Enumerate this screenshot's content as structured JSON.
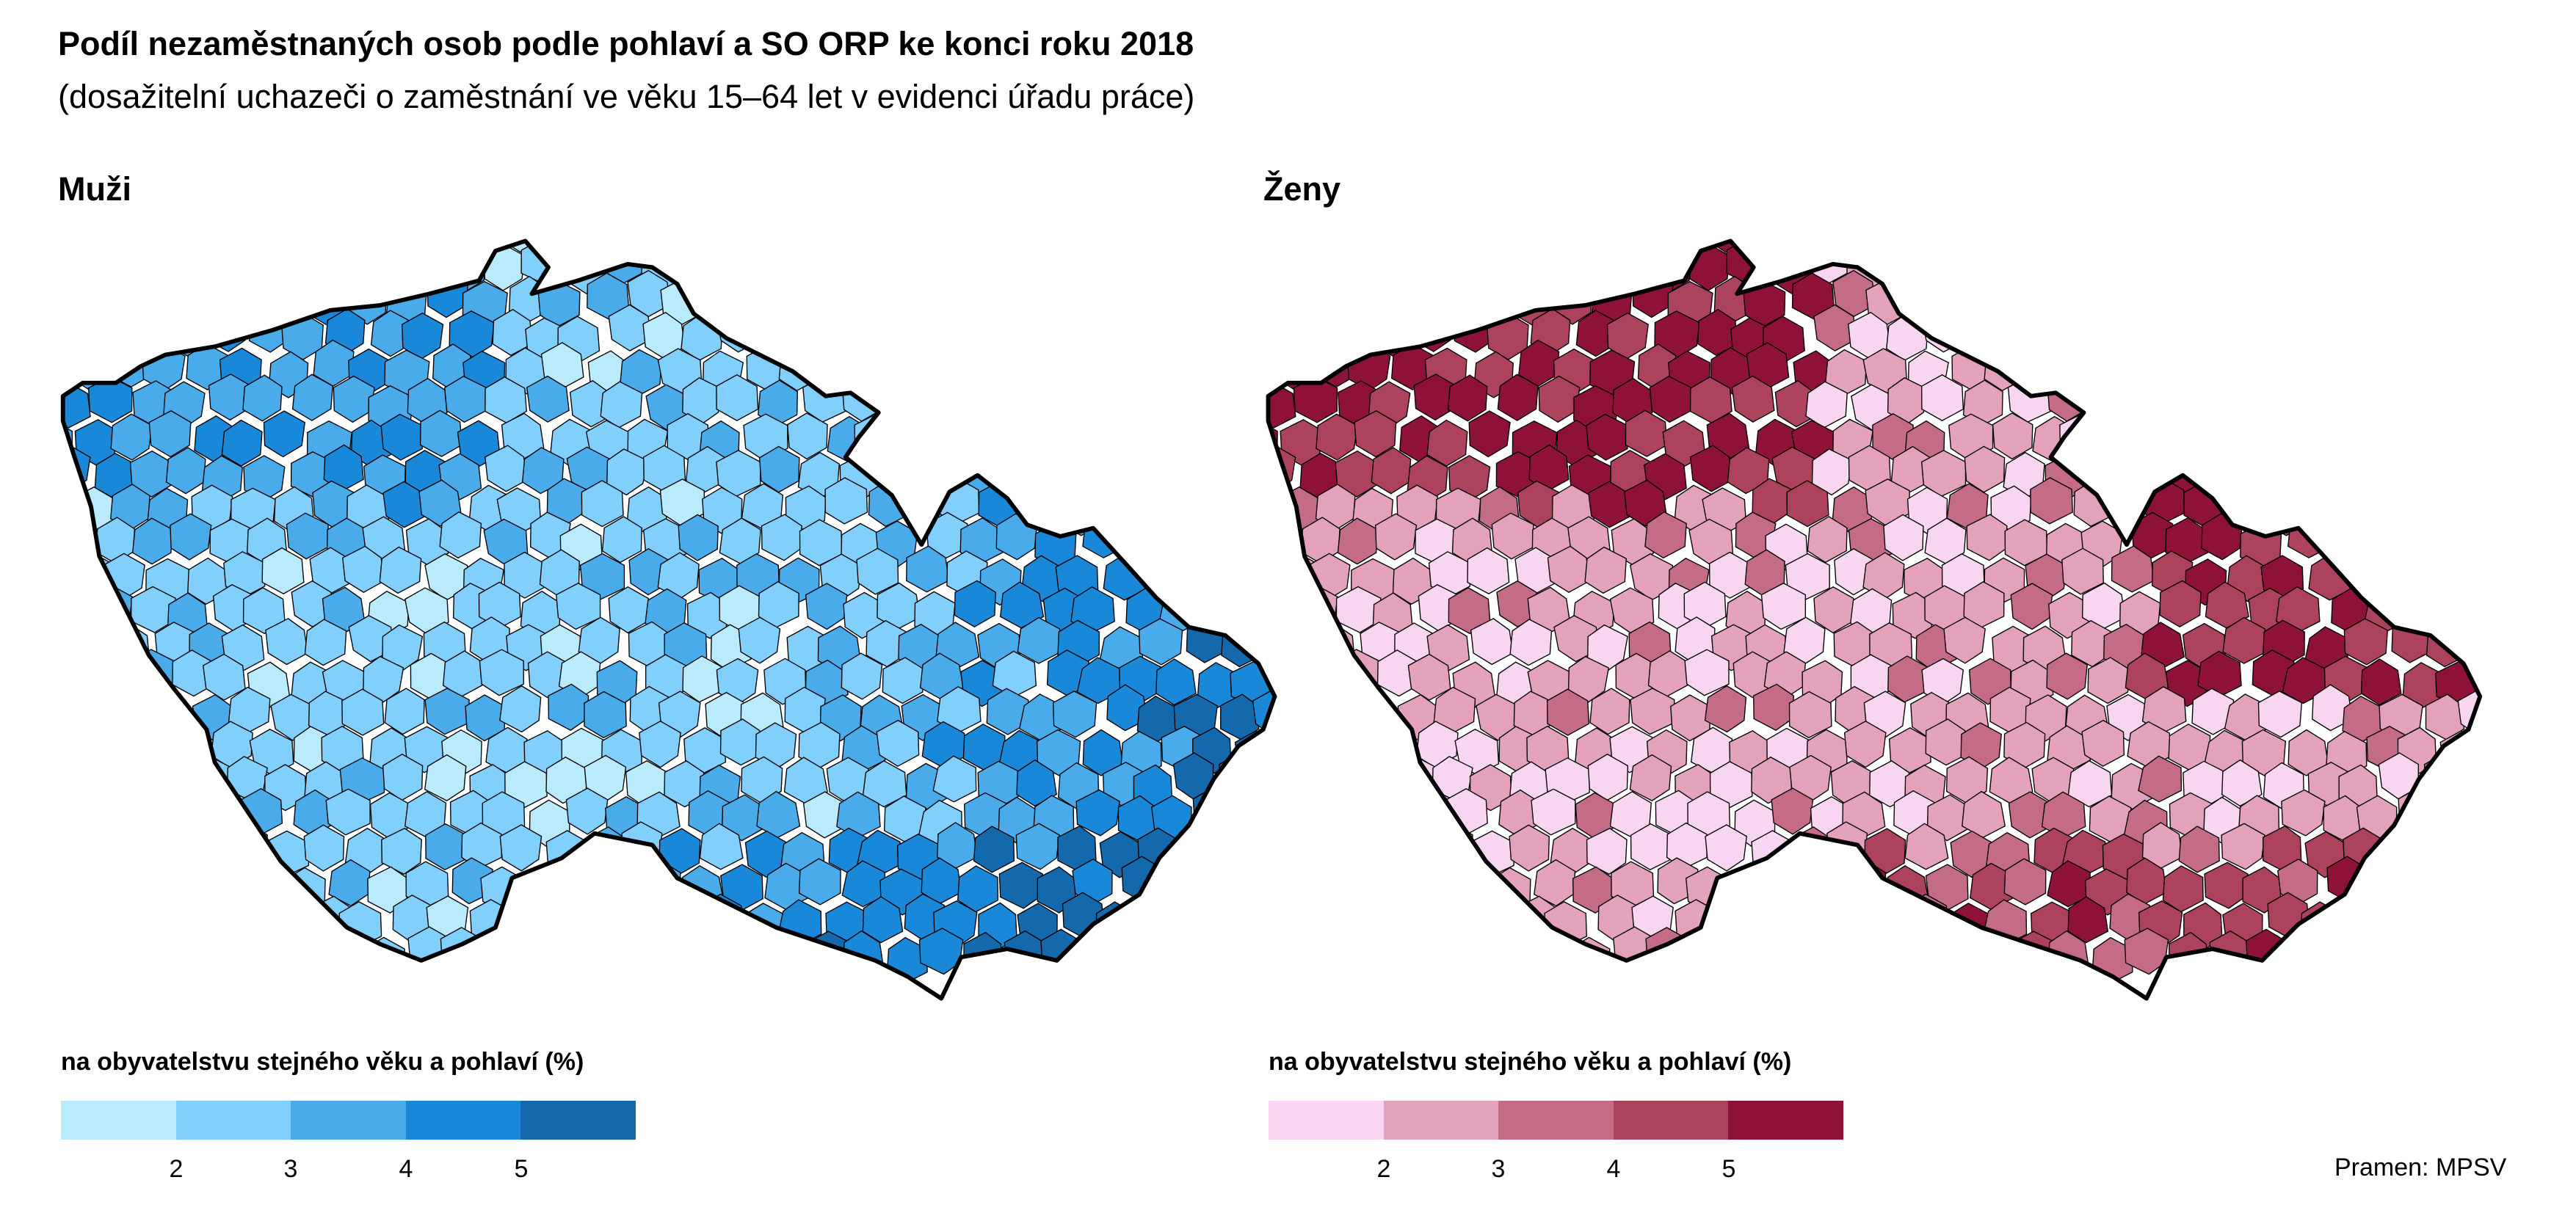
{
  "title": "Podíl nezaměstnaných osob podle pohlaví a SO ORP ke konci roku 2018",
  "subtitle": "(dosažitelní uchazeči o zaměstnání ve věku 15–64 let v evidenci úřadu práce)",
  "source": "Pramen: MPSV",
  "chart_data": [
    {
      "type": "choropleth",
      "panel_title": "Muži",
      "legend_title": "na obyvatelstvu stejného věku a pohlaví (%)",
      "breaks": [
        "2",
        "3",
        "4",
        "5"
      ],
      "colors": [
        "#b9ebfd",
        "#80cffd",
        "#4aabeb",
        "#1988d8",
        "#1369ab"
      ]
    },
    {
      "type": "choropleth",
      "panel_title": "Ženy",
      "legend_title": "na obyvatelstvu stejného věku a pohlaví (%)",
      "breaks": [
        "2",
        "3",
        "4",
        "5"
      ],
      "colors": [
        "#f8d6f2",
        "#e3a1bb",
        "#c46b86",
        "#ac425c",
        "#8e1237"
      ]
    }
  ]
}
